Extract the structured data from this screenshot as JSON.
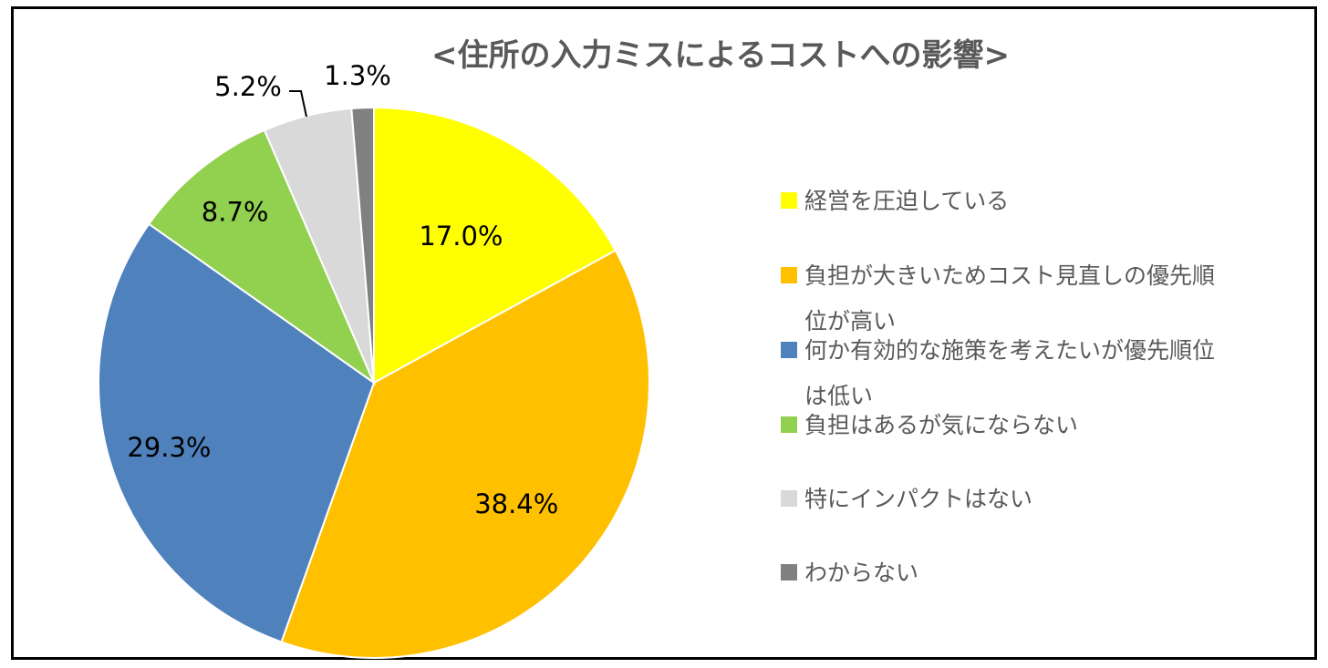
{
  "chart_data": {
    "type": "pie",
    "title": "<住所の入力ミスによるコストへの影響>",
    "slices": [
      {
        "label": "経営を圧迫している",
        "label_lines": [
          "経営を圧迫している"
        ],
        "value": 17.0,
        "value_label": "17.0%",
        "color": "#FFFF00"
      },
      {
        "label": "負担が大きいためコスト見直しの優先順位が高い",
        "label_lines": [
          "負担が大きいためコスト見直しの優先順",
          "位が高い"
        ],
        "value": 38.4,
        "value_label": "38.4%",
        "color": "#FFC000"
      },
      {
        "label": "何か有効的な施策を考えたいが優先順位は低い",
        "label_lines": [
          "何か有効的な施策を考えたいが優先順位",
          "は低い"
        ],
        "value": 29.3,
        "value_label": "29.3%",
        "color": "#4F81BD"
      },
      {
        "label": "負担はあるが気にならない",
        "label_lines": [
          "負担はあるが気にならない"
        ],
        "value": 8.7,
        "value_label": "8.7%",
        "color": "#92D050"
      },
      {
        "label": "特にインパクトはない",
        "label_lines": [
          "特にインパクトはない"
        ],
        "value": 5.2,
        "value_label": "5.2%",
        "color": "#D9D9D9"
      },
      {
        "label": "わからない",
        "label_lines": [
          "わからない"
        ],
        "value": 1.3,
        "value_label": "1.3%",
        "color": "#808080"
      }
    ],
    "legend_position": "right",
    "start_angle": "12 o'clock",
    "direction": "clockwise"
  }
}
